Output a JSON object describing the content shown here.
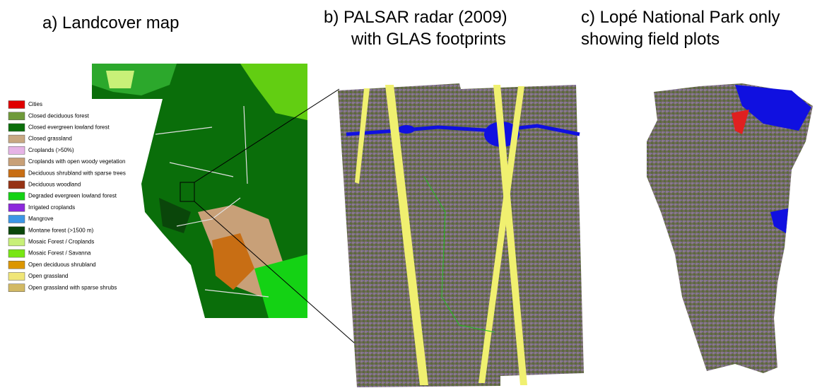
{
  "panels": [
    {
      "title_lines": [
        "a) Landcover map"
      ]
    },
    {
      "title_lines": [
        "b) PALSAR radar (2009)",
        "with GLAS footprints"
      ]
    },
    {
      "title_lines": [
        "c) Lopé National Park only",
        "showing field plots"
      ]
    }
  ],
  "legend": [
    {
      "label": "Cities",
      "color": "#e00000"
    },
    {
      "label": "Closed deciduous forest",
      "color": "#6f9a3a"
    },
    {
      "label": "Closed evergreen lowland forest",
      "color": "#0a6e0a"
    },
    {
      "label": "Closed grassland",
      "color": "#c8a882"
    },
    {
      "label": "Croplands (>50%)",
      "color": "#e6b4e6"
    },
    {
      "label": "Croplands with open woody vegetation",
      "color": "#c8a078"
    },
    {
      "label": "Deciduous shrubland with sparse trees",
      "color": "#c86e14"
    },
    {
      "label": "Deciduous woodland",
      "color": "#963214"
    },
    {
      "label": "Degraded evergreen lowland forest",
      "color": "#14d214"
    },
    {
      "label": "Irrigated croplands",
      "color": "#8c28dc"
    },
    {
      "label": "Mangrove",
      "color": "#3c96e6"
    },
    {
      "label": "Montane forest (>1500 m)",
      "color": "#0a460a"
    },
    {
      "label": "Mosaic Forest / Croplands",
      "color": "#c8f078"
    },
    {
      "label": "Mosaic Forest / Savanna",
      "color": "#78e614"
    },
    {
      "label": "Open deciduous shrubland",
      "color": "#dc9600"
    },
    {
      "label": "Open grassland",
      "color": "#f0e678"
    },
    {
      "label": "Open grassland with sparse shrubs",
      "color": "#d2b964"
    }
  ]
}
